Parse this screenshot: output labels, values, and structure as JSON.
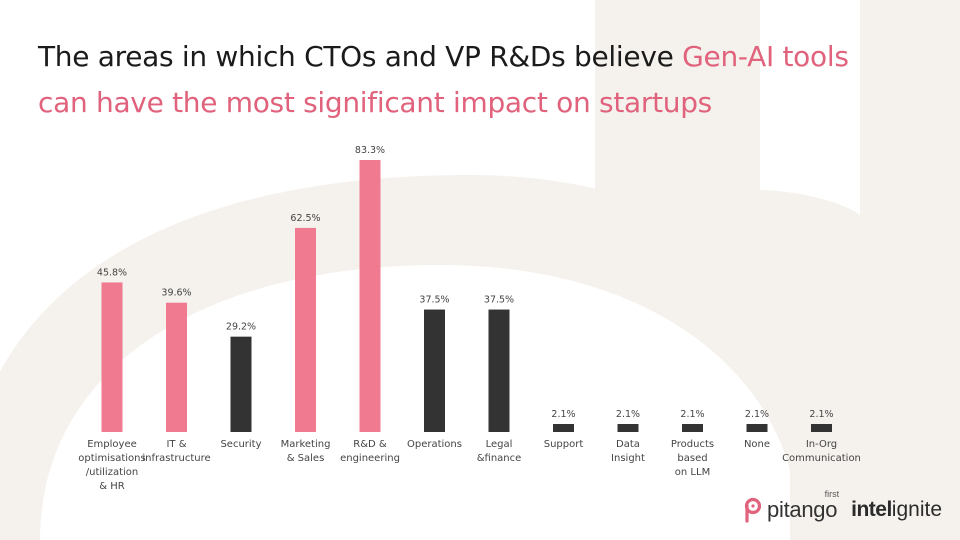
{
  "header": {
    "title_part1": "The areas in which CTOs and VP R&Ds believe ",
    "title_highlight_1": "Gen-AI tools",
    "title_highlight_2": "can have the most significant impact on startups"
  },
  "colors": {
    "accent": "#f07a90",
    "dark": "#333333",
    "title_highlight": "#e0627c",
    "background_shape": "#f4f1ec"
  },
  "chart_data": {
    "type": "bar",
    "title": "The areas in which CTOs and VP R&Ds believe Gen-AI tools can have the most significant impact on startups",
    "xlabel": "",
    "ylabel": "",
    "ylim": [
      0,
      90
    ],
    "grid": false,
    "categories": [
      [
        "Employee",
        "optimisations",
        "/utilization",
        "& HR"
      ],
      [
        "IT &",
        "infrastructure"
      ],
      [
        "Security"
      ],
      [
        "Marketing",
        "& Sales"
      ],
      [
        "R&D &",
        "engineering"
      ],
      [
        "Operations"
      ],
      [
        "Legal",
        "&finance"
      ],
      [
        "Support"
      ],
      [
        "Data",
        "Insight"
      ],
      [
        "Products",
        "based",
        "on LLM"
      ],
      [
        "None"
      ],
      [
        "In-Org",
        "Communication"
      ]
    ],
    "values": [
      45.8,
      39.6,
      29.2,
      62.5,
      83.3,
      37.5,
      37.5,
      2.1,
      2.1,
      2.1,
      2.1,
      2.1
    ],
    "value_labels": [
      "45.8%",
      "39.6%",
      "29.2%",
      "62.5%",
      "83.3%",
      "37.5%",
      "37.5%",
      "2.1%",
      "2.1%",
      "2.1%",
      "2.1%",
      "2.1%"
    ],
    "bar_colors": [
      "accent",
      "accent",
      "dark",
      "accent",
      "accent",
      "dark",
      "dark",
      "dark",
      "dark",
      "dark",
      "dark",
      "dark"
    ]
  },
  "logos": {
    "pitango_word": "pitango",
    "pitango_first": "first",
    "intel_bold": "intel",
    "intel_rest": "ignite"
  }
}
